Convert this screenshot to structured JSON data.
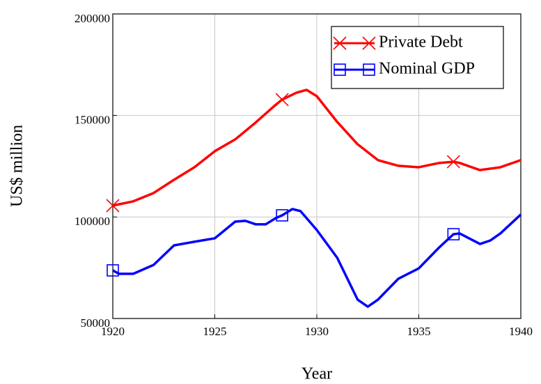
{
  "chart_data": {
    "type": "line",
    "xlabel": "Year",
    "ylabel": "US$ million",
    "xlim": [
      1920,
      1940
    ],
    "xticks": [
      1920,
      1925,
      1930,
      1935,
      1940
    ],
    "ylim": [
      50000,
      200000
    ],
    "yticks": [
      50000,
      100000,
      150000,
      200000
    ],
    "grid": true,
    "legend": "upper right",
    "marker_at": [
      1920,
      1928.3,
      1936.7
    ],
    "series": [
      {
        "name": "Private Debt",
        "color": "#ff0000",
        "marker": "x",
        "x": [
          1920,
          1921,
          1922,
          1923,
          1924,
          1925,
          1926,
          1927,
          1928,
          1928.3,
          1929,
          1929.5,
          1930,
          1931,
          1932,
          1933,
          1934,
          1935,
          1936,
          1936.7,
          1937,
          1938,
          1939,
          1940
        ],
        "values": [
          105600,
          107700,
          111800,
          118300,
          124500,
          132400,
          138200,
          146500,
          155400,
          157800,
          161200,
          162600,
          159500,
          146800,
          135800,
          128000,
          125200,
          124500,
          126600,
          127200,
          126600,
          123100,
          124500,
          128000
        ]
      },
      {
        "name": "Nominal GDP",
        "color": "#0000ff",
        "marker": "square",
        "x": [
          1920,
          1920.3,
          1921,
          1922,
          1923,
          1924,
          1925,
          1925.5,
          1926,
          1926.5,
          1927,
          1927.5,
          1928,
          1928.3,
          1928.8,
          1929.2,
          1930,
          1931,
          1932,
          1932.5,
          1933,
          1934,
          1935,
          1936,
          1936.7,
          1937,
          1938,
          1938.5,
          1939,
          1940
        ],
        "values": [
          73700,
          72000,
          72000,
          76400,
          86000,
          87800,
          89500,
          93600,
          97700,
          98100,
          96400,
          96400,
          99500,
          100800,
          103900,
          102900,
          93600,
          79900,
          59300,
          55800,
          59300,
          69600,
          74700,
          85000,
          91500,
          91900,
          86700,
          88400,
          91900,
          101200
        ]
      }
    ]
  }
}
